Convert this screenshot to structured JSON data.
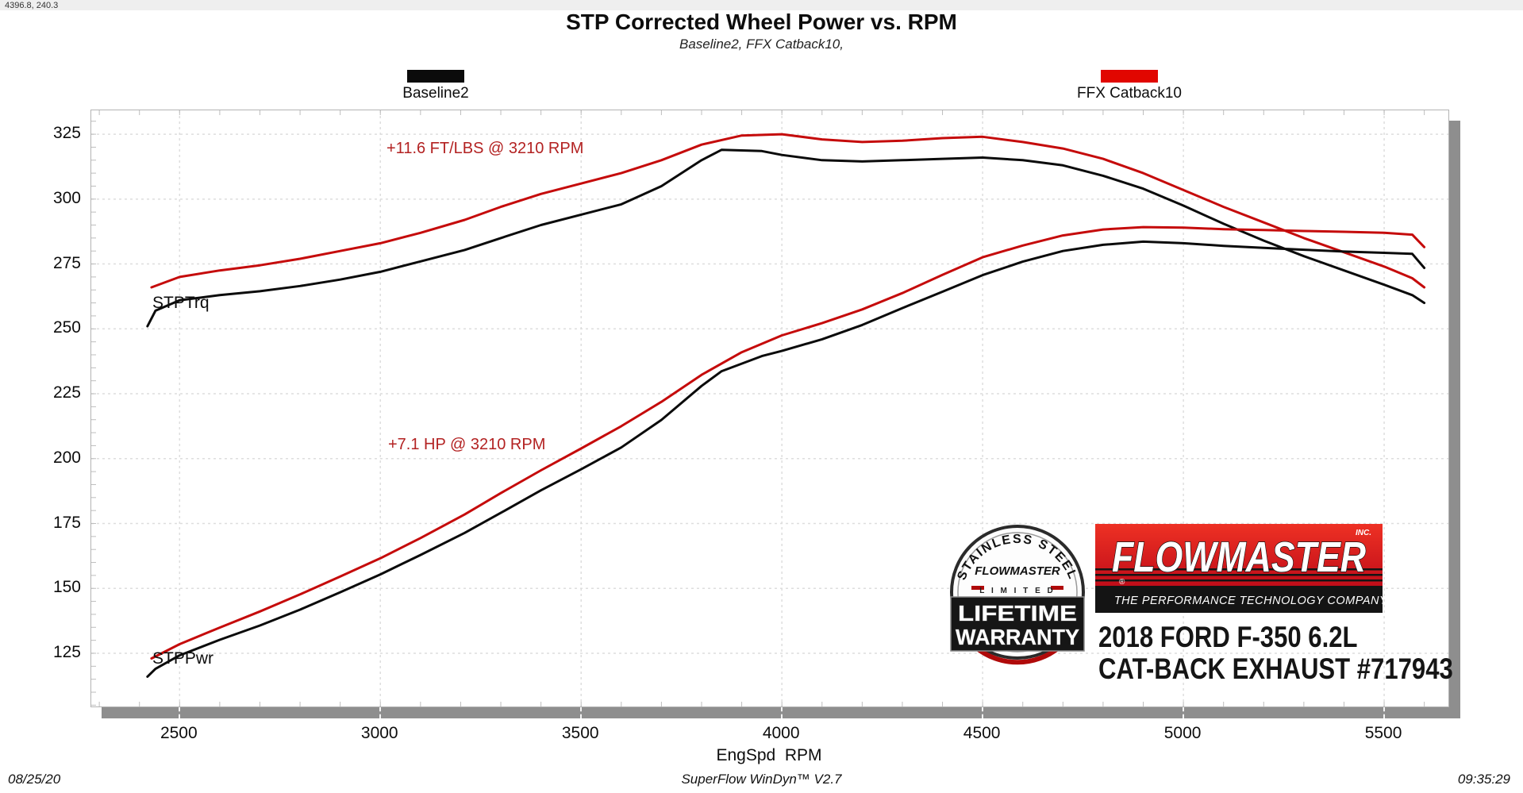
{
  "header": {
    "cursor_readout": "4396.8, 240.3",
    "title": "STP Corrected Wheel Power vs. RPM",
    "subtitle": "Baseline2, FFX Catback10,"
  },
  "legend": {
    "items": [
      {
        "label": "Baseline2",
        "color": "#0b0b0b"
      },
      {
        "label": "FFX Catback10",
        "color": "#e10600"
      }
    ],
    "position": "top"
  },
  "annotations": {
    "torque_gain": "+11.6 FT/LBS @ 3210 RPM",
    "power_gain": "+7.1 HP @ 3210 RPM",
    "torque_curve_label": "STPTrq",
    "power_curve_label": "STPPwr",
    "annotation_color": "#b32222"
  },
  "footer": {
    "date": "08/25/20",
    "software": "SuperFlow WinDyn™ V2.7",
    "time": "09:35:29"
  },
  "branding": {
    "badge": {
      "arc_text": "STAINLESS STEEL",
      "brand": "FLOWMASTER",
      "limited": "L I M I T E D",
      "line1": "LIFETIME",
      "line2": "WARRANTY"
    },
    "logo": {
      "brand": "FLOWMASTER",
      "inc": "INC.",
      "registered": "®",
      "tagline": "THE PERFORMANCE TECHNOLOGY COMPANY",
      "red": "#d41219",
      "black": "#141414"
    },
    "vehicle": {
      "line1": "2018 FORD F-350 6.2L",
      "line2": "CAT-BACK EXHAUST #717943"
    }
  },
  "chart_data": {
    "type": "line",
    "title": "STP Corrected Wheel Power vs. RPM",
    "subtitle": "Baseline2, FFX Catback10,",
    "xlabel": "EngSpd  RPM",
    "ylabel": "",
    "xlim": [
      2280,
      5660
    ],
    "ylim": [
      104.5,
      334.2
    ],
    "x_ticks": [
      2500,
      3000,
      3500,
      4000,
      4500,
      5000,
      5500
    ],
    "y_ticks": [
      125,
      150,
      175,
      200,
      225,
      250,
      275,
      300,
      325
    ],
    "grid": "dashed",
    "legend_position": "top",
    "grid_color": "#dedede",
    "minor_tick_color": "#bdbdbd",
    "series": [
      {
        "name": "Baseline2 STPTrq (ft-lbs)",
        "color": "#0b0b0b",
        "width": 3,
        "points": [
          [
            2420,
            251
          ],
          [
            2440,
            257
          ],
          [
            2500,
            261
          ],
          [
            2600,
            263
          ],
          [
            2700,
            264.5
          ],
          [
            2800,
            266.5
          ],
          [
            2900,
            269
          ],
          [
            3000,
            272
          ],
          [
            3100,
            276
          ],
          [
            3210,
            280.4
          ],
          [
            3300,
            285
          ],
          [
            3400,
            290
          ],
          [
            3500,
            294
          ],
          [
            3600,
            298
          ],
          [
            3700,
            305
          ],
          [
            3800,
            315
          ],
          [
            3850,
            319
          ],
          [
            3950,
            318.5
          ],
          [
            4000,
            317
          ],
          [
            4100,
            315
          ],
          [
            4200,
            314.5
          ],
          [
            4300,
            315
          ],
          [
            4400,
            315.5
          ],
          [
            4500,
            316
          ],
          [
            4600,
            315
          ],
          [
            4700,
            313
          ],
          [
            4800,
            309
          ],
          [
            4900,
            304
          ],
          [
            5000,
            297.5
          ],
          [
            5100,
            290.5
          ],
          [
            5200,
            284
          ],
          [
            5300,
            278
          ],
          [
            5400,
            272.5
          ],
          [
            5500,
            267
          ],
          [
            5570,
            263
          ],
          [
            5600,
            260
          ]
        ]
      },
      {
        "name": "FFX Catback10 STPTrq (ft-lbs)",
        "color": "#c50b0b",
        "width": 3,
        "points": [
          [
            2430,
            266
          ],
          [
            2500,
            270
          ],
          [
            2600,
            272.5
          ],
          [
            2700,
            274.5
          ],
          [
            2800,
            277
          ],
          [
            2900,
            280
          ],
          [
            3000,
            283
          ],
          [
            3100,
            287
          ],
          [
            3210,
            292
          ],
          [
            3300,
            297
          ],
          [
            3400,
            302
          ],
          [
            3500,
            306
          ],
          [
            3600,
            310
          ],
          [
            3700,
            315
          ],
          [
            3800,
            321
          ],
          [
            3900,
            324.5
          ],
          [
            4000,
            325
          ],
          [
            4100,
            323
          ],
          [
            4200,
            322
          ],
          [
            4300,
            322.5
          ],
          [
            4400,
            323.5
          ],
          [
            4500,
            324
          ],
          [
            4600,
            322
          ],
          [
            4700,
            319.5
          ],
          [
            4800,
            315.5
          ],
          [
            4900,
            310
          ],
          [
            5000,
            303.5
          ],
          [
            5100,
            297
          ],
          [
            5200,
            291
          ],
          [
            5300,
            285
          ],
          [
            5400,
            279.5
          ],
          [
            5500,
            274
          ],
          [
            5570,
            269.5
          ],
          [
            5600,
            266
          ]
        ]
      },
      {
        "name": "Baseline2 STPPwr (hp)",
        "color": "#0b0b0b",
        "width": 3,
        "points": [
          [
            2420,
            116
          ],
          [
            2440,
            119
          ],
          [
            2500,
            124.2
          ],
          [
            2600,
            130.2
          ],
          [
            2700,
            135.7
          ],
          [
            2800,
            141.8
          ],
          [
            2900,
            148.5
          ],
          [
            3000,
            155.4
          ],
          [
            3100,
            162.9
          ],
          [
            3210,
            171.4
          ],
          [
            3300,
            179.1
          ],
          [
            3400,
            187.8
          ],
          [
            3500,
            195.9
          ],
          [
            3600,
            204.3
          ],
          [
            3700,
            214.9
          ],
          [
            3800,
            228
          ],
          [
            3850,
            233.7
          ],
          [
            3950,
            239.5
          ],
          [
            4000,
            241.5
          ],
          [
            4100,
            246
          ],
          [
            4200,
            251.5
          ],
          [
            4300,
            258
          ],
          [
            4400,
            264.3
          ],
          [
            4500,
            270.7
          ],
          [
            4600,
            275.9
          ],
          [
            4700,
            280
          ],
          [
            4800,
            282.4
          ],
          [
            4900,
            283.6
          ],
          [
            5000,
            283
          ],
          [
            5100,
            282
          ],
          [
            5200,
            281.2
          ],
          [
            5300,
            280.5
          ],
          [
            5400,
            279.8
          ],
          [
            5500,
            279.3
          ],
          [
            5570,
            278.9
          ],
          [
            5600,
            273.5
          ]
        ]
      },
      {
        "name": "FFX Catback10 STPPwr (hp)",
        "color": "#c50b0b",
        "width": 3,
        "points": [
          [
            2430,
            123
          ],
          [
            2500,
            128.5
          ],
          [
            2600,
            134.9
          ],
          [
            2700,
            141.1
          ],
          [
            2800,
            147.7
          ],
          [
            2900,
            154.6
          ],
          [
            3000,
            161.6
          ],
          [
            3100,
            169.4
          ],
          [
            3210,
            178.5
          ],
          [
            3300,
            186.7
          ],
          [
            3400,
            195.5
          ],
          [
            3500,
            203.9
          ],
          [
            3600,
            212.5
          ],
          [
            3700,
            221.9
          ],
          [
            3800,
            232.3
          ],
          [
            3900,
            241
          ],
          [
            4000,
            247.5
          ],
          [
            4100,
            252.2
          ],
          [
            4200,
            257.5
          ],
          [
            4300,
            263.8
          ],
          [
            4400,
            270.8
          ],
          [
            4500,
            277.6
          ],
          [
            4600,
            282.1
          ],
          [
            4700,
            286
          ],
          [
            4800,
            288.3
          ],
          [
            4900,
            289.2
          ],
          [
            5000,
            289
          ],
          [
            5100,
            288.4
          ],
          [
            5200,
            288.1
          ],
          [
            5300,
            287.7
          ],
          [
            5400,
            287.4
          ],
          [
            5500,
            287
          ],
          [
            5570,
            286.3
          ],
          [
            5600,
            281.5
          ]
        ]
      }
    ]
  }
}
